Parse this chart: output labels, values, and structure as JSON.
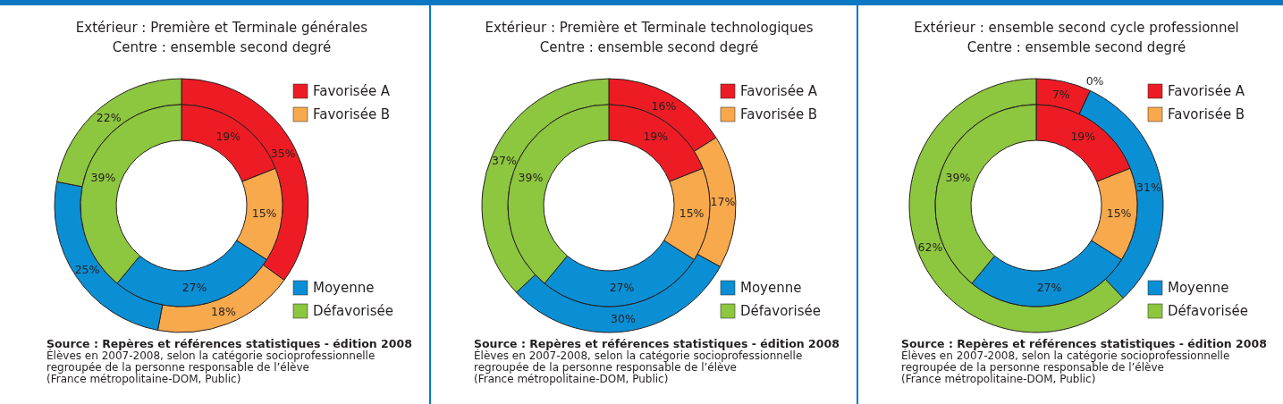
{
  "chart_data": [
    {
      "type": "donut",
      "title": "Extérieur : Première et Terminale générales",
      "subtitle": "Centre : ensemble second degré",
      "categories": [
        "Favorisée A",
        "Favorisée B",
        "Moyenne",
        "Défavorisée"
      ],
      "colors": [
        "#ed1c24",
        "#f7a94c",
        "#0a8fd4",
        "#8dc63f"
      ],
      "legend": "right",
      "series": [
        {
          "values": [
            35,
            18,
            25,
            22
          ],
          "value_labels": [
            "35%",
            "18%",
            "25%",
            "22%"
          ]
        },
        {
          "values": [
            19,
            15,
            27,
            39
          ],
          "value_labels": [
            "19%",
            "15%",
            "27%",
            "39%"
          ]
        }
      ],
      "annotations": [
        "Source : Repères et références statistiques - édition 2008",
        "Élèves en 2007-2008, selon la catégorie socioprofessionnelle",
        "regroupée de la personne responsable de l’élève",
        "(France métropolitaine-DOM, Public)"
      ]
    },
    {
      "type": "donut",
      "title": "Extérieur : Première et Terminale technologiques",
      "subtitle": "Centre : ensemble second degré",
      "categories": [
        "Favorisée A",
        "Favorisée B",
        "Moyenne",
        "Défavorisée"
      ],
      "colors": [
        "#ed1c24",
        "#f7a94c",
        "#0a8fd4",
        "#8dc63f"
      ],
      "legend": "right",
      "series": [
        {
          "values": [
            16,
            17,
            30,
            37
          ],
          "value_labels": [
            "16%",
            "17%",
            "30%",
            "37%"
          ]
        },
        {
          "values": [
            19,
            15,
            27,
            39
          ],
          "value_labels": [
            "19%",
            "15%",
            "27%",
            "39%"
          ]
        }
      ],
      "annotations": [
        "Source : Repères et références statistiques - édition 2008",
        "Élèves en 2007-2008, selon la catégorie socioprofessionnelle",
        "regroupée de la personne responsable de l’élève",
        "(France métropolitaine-DOM, Public)"
      ]
    },
    {
      "type": "donut",
      "title": "Extérieur : ensemble second cycle professionnel",
      "subtitle": "Centre : ensemble second degré",
      "categories": [
        "Favorisée A",
        "Favorisée B",
        "Moyenne",
        "Défavorisée"
      ],
      "colors": [
        "#ed1c24",
        "#f7a94c",
        "#0a8fd4",
        "#8dc63f"
      ],
      "legend": "right",
      "series": [
        {
          "values": [
            7,
            0,
            31,
            62
          ],
          "value_labels": [
            "7%",
            "0%",
            "31%",
            "62%"
          ]
        },
        {
          "values": [
            19,
            15,
            27,
            39
          ],
          "value_labels": [
            "19%",
            "15%",
            "27%",
            "39%"
          ]
        }
      ],
      "annotations": [
        "Source : Repères et références statistiques - édition 2008",
        "Élèves en 2007-2008, selon la catégorie socioprofessionnelle",
        "regroupée de la personne responsable de l’élève",
        "(France métropolitaine-DOM, Public)"
      ]
    }
  ]
}
